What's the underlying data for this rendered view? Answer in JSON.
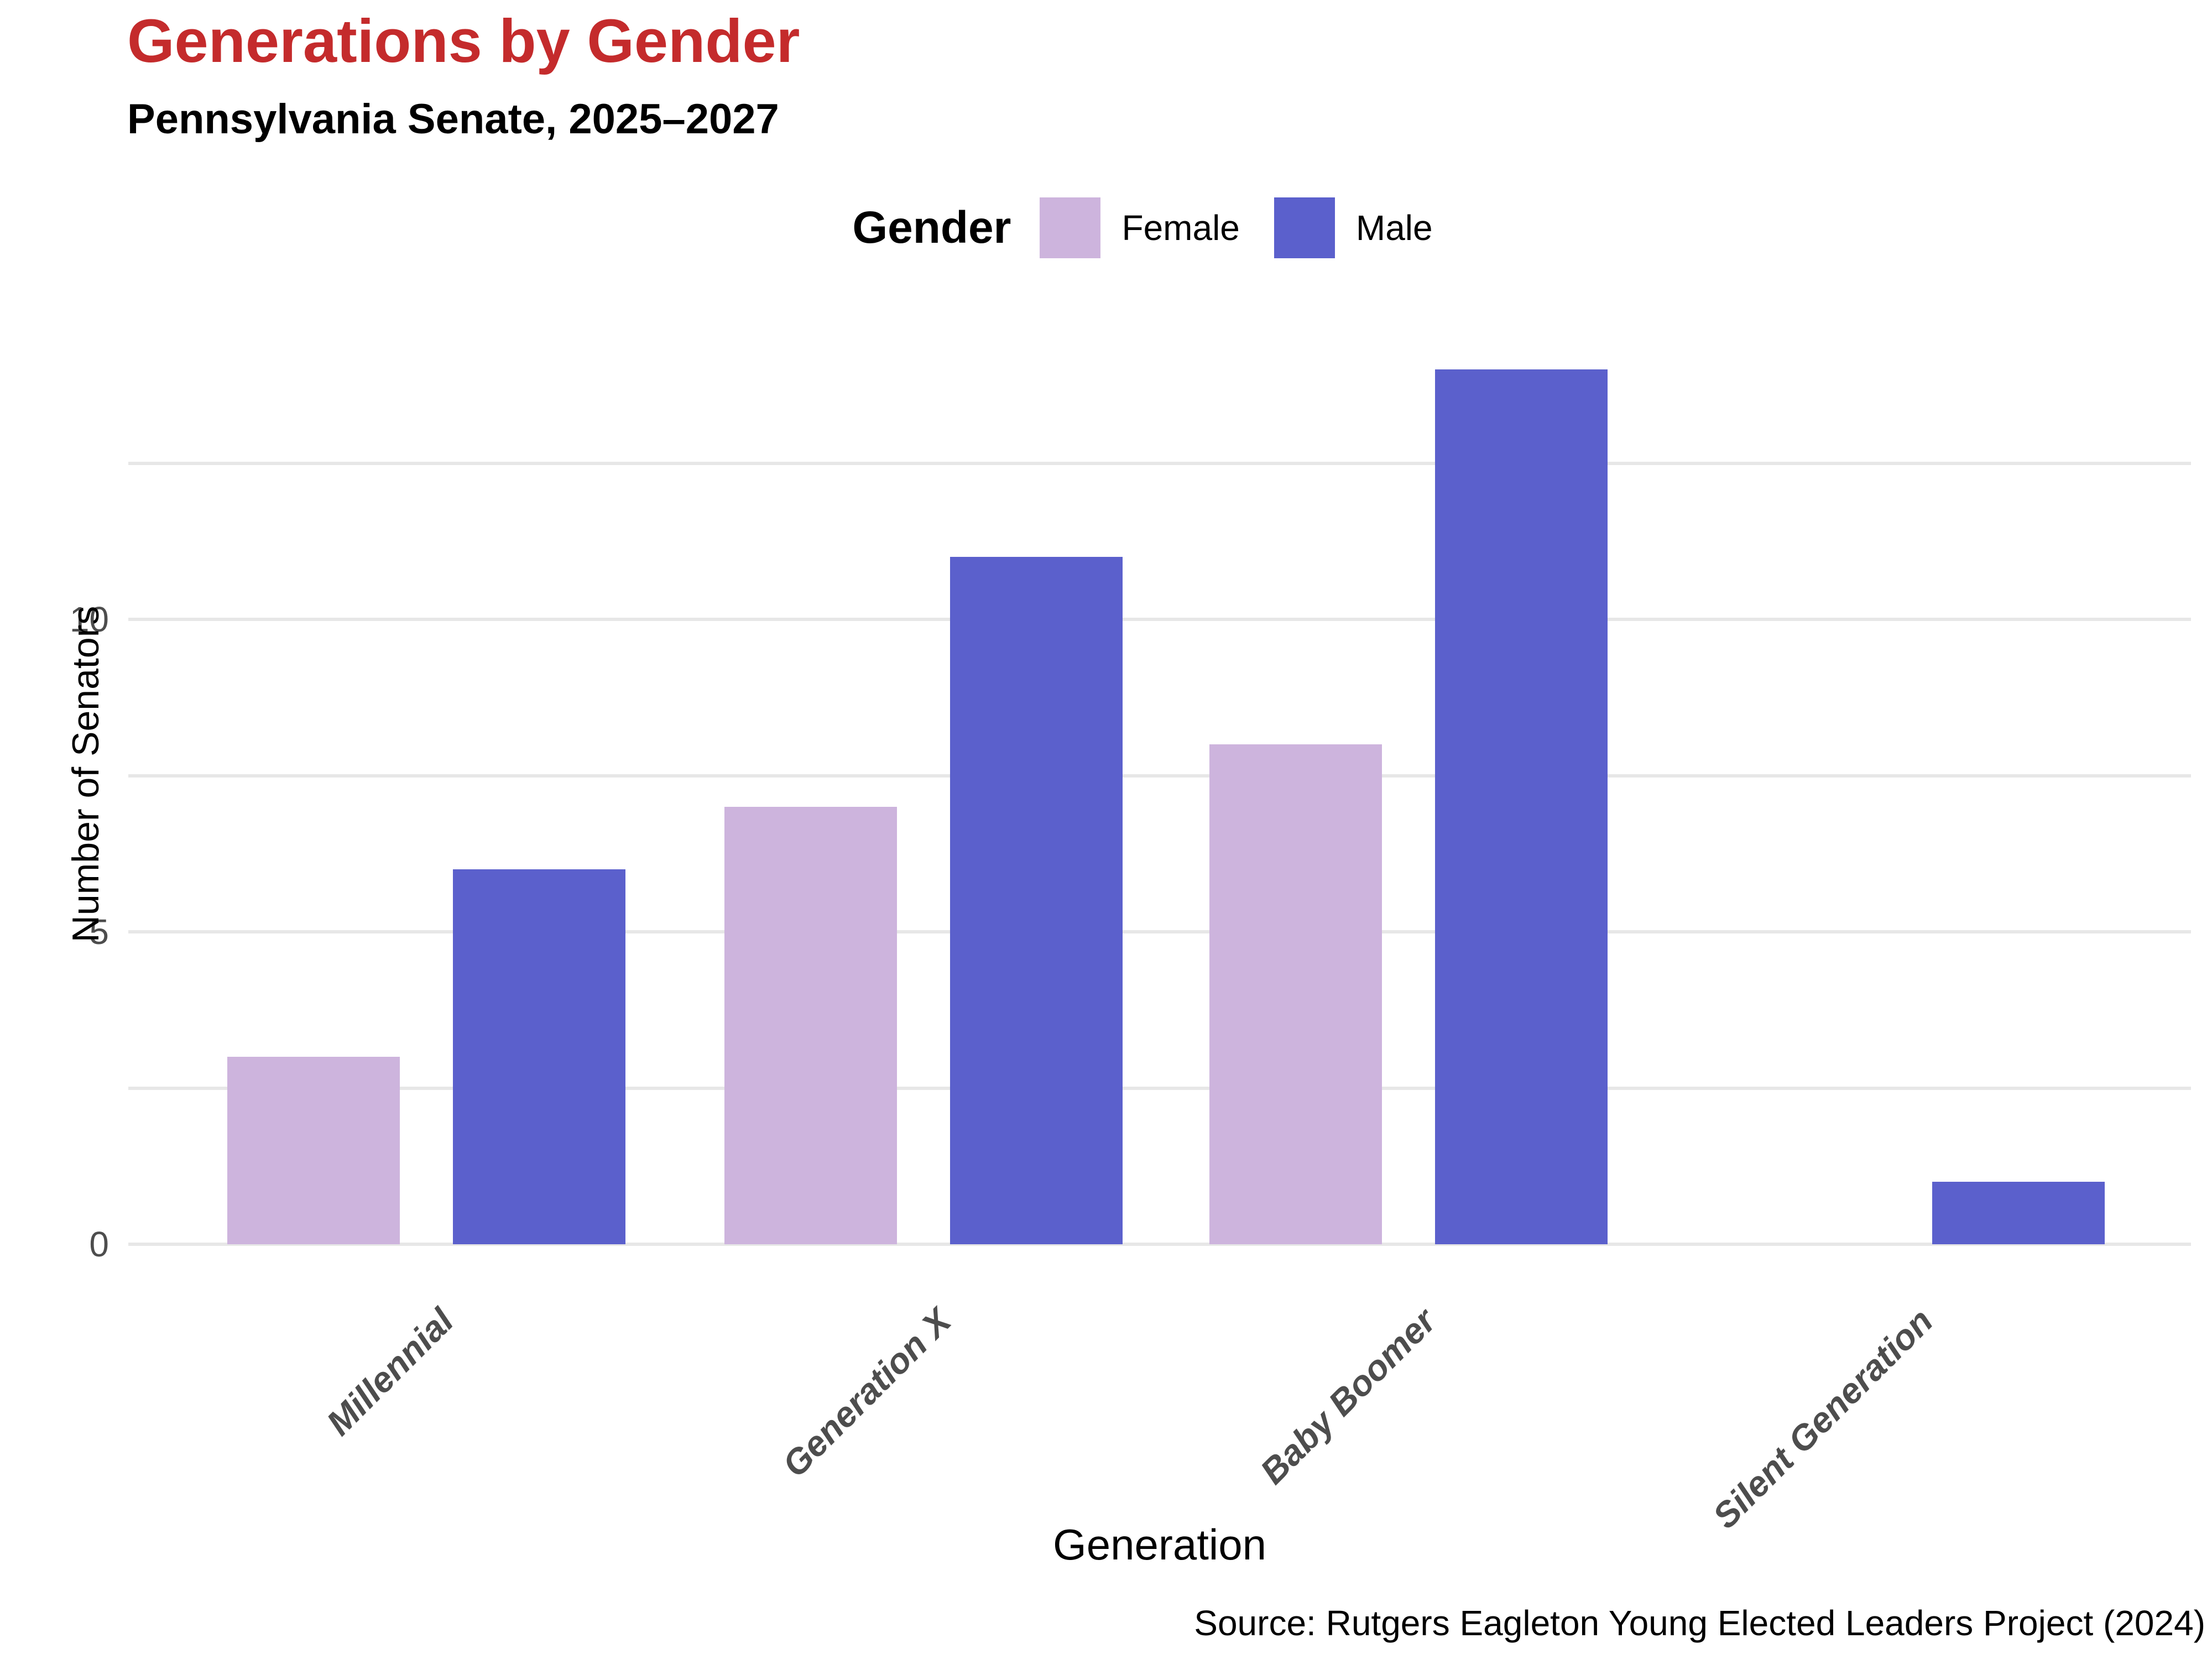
{
  "chart_data": {
    "type": "bar",
    "title": "Generations by Gender",
    "subtitle": "Pennsylvania Senate, 2025–2027",
    "legend_title": "Gender",
    "legend_position": "top center",
    "categories": [
      "Millennial",
      "Generation X",
      "Baby Boomer",
      "Silent Generation"
    ],
    "series": [
      {
        "name": "Female",
        "color": "#CDB4DD",
        "values": [
          3,
          7,
          8,
          0
        ]
      },
      {
        "name": "Male",
        "color": "#5B60CC",
        "values": [
          6,
          11,
          14,
          1
        ]
      }
    ],
    "xlabel": "Generation",
    "ylabel": "Number of Senators",
    "ylim": [
      0,
      15
    ],
    "yticks": [
      0,
      5,
      10
    ],
    "gridlines": [
      0,
      2.5,
      5,
      7.5,
      10,
      12.5
    ],
    "grid": "horizontal-only",
    "source": "Source: Rutgers Eagleton Young Elected Leaders Project (2024)",
    "colors": {
      "title": "#C42B2C",
      "axis_text": "#4D4D4D",
      "gridline": "#E7E7E7",
      "text": "#000000",
      "background": "#FFFFFF"
    }
  }
}
